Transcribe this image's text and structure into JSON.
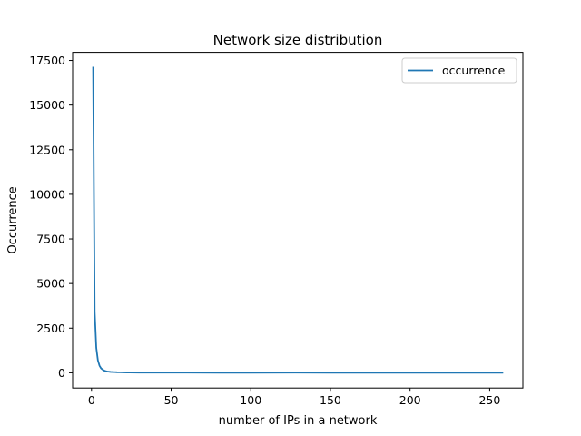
{
  "chart_data": {
    "type": "line",
    "title": "Network size distribution",
    "xlabel": "number of IPs in a network",
    "ylabel": "Occurrence",
    "xlim": [
      -11.85,
      270.85
    ],
    "ylim": [
      -855,
      17955
    ],
    "xticks": [
      0,
      50,
      100,
      150,
      200,
      250
    ],
    "yticks": [
      0,
      2500,
      5000,
      7500,
      10000,
      12500,
      15000,
      17500
    ],
    "grid": false,
    "legend": "top-right",
    "series": [
      {
        "name": "occurrence",
        "color": "#1f77b4",
        "x": [
          1,
          2,
          3,
          4,
          5,
          6,
          7,
          8,
          9,
          10,
          12,
          14,
          16,
          18,
          20,
          22,
          24,
          30,
          40,
          60,
          80,
          100,
          128,
          150,
          200,
          256,
          258
        ],
        "y": [
          17100,
          3400,
          1400,
          700,
          400,
          250,
          180,
          120,
          90,
          70,
          50,
          40,
          30,
          25,
          20,
          15,
          12,
          10,
          8,
          6,
          5,
          4,
          8,
          3,
          2,
          3,
          2
        ]
      }
    ]
  }
}
